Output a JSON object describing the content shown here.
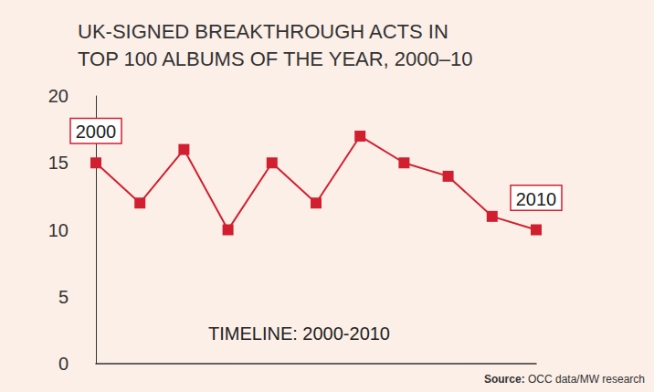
{
  "chart_data": {
    "type": "line",
    "title": "UK-SIGNED BREAKTHROUGH ACTS IN\nTOP 100 ALBUMS OF THE YEAR, 2000–10",
    "categories": [
      null,
      null,
      null,
      null,
      null,
      null,
      null,
      null,
      null,
      null,
      null
    ],
    "values": [
      15,
      12,
      16,
      10,
      15,
      12,
      17,
      15,
      14,
      11,
      10
    ],
    "color": "#d21f2f",
    "marker": "square",
    "ylim": [
      0,
      20
    ],
    "yticks": [
      0,
      5,
      10,
      15,
      20
    ],
    "grid": false,
    "tick_labels": "y",
    "annotations": [
      "2000",
      "2010"
    ],
    "caption": "TIMELINE: 2000-2010",
    "source": "Source: OCC data/MW research"
  }
}
